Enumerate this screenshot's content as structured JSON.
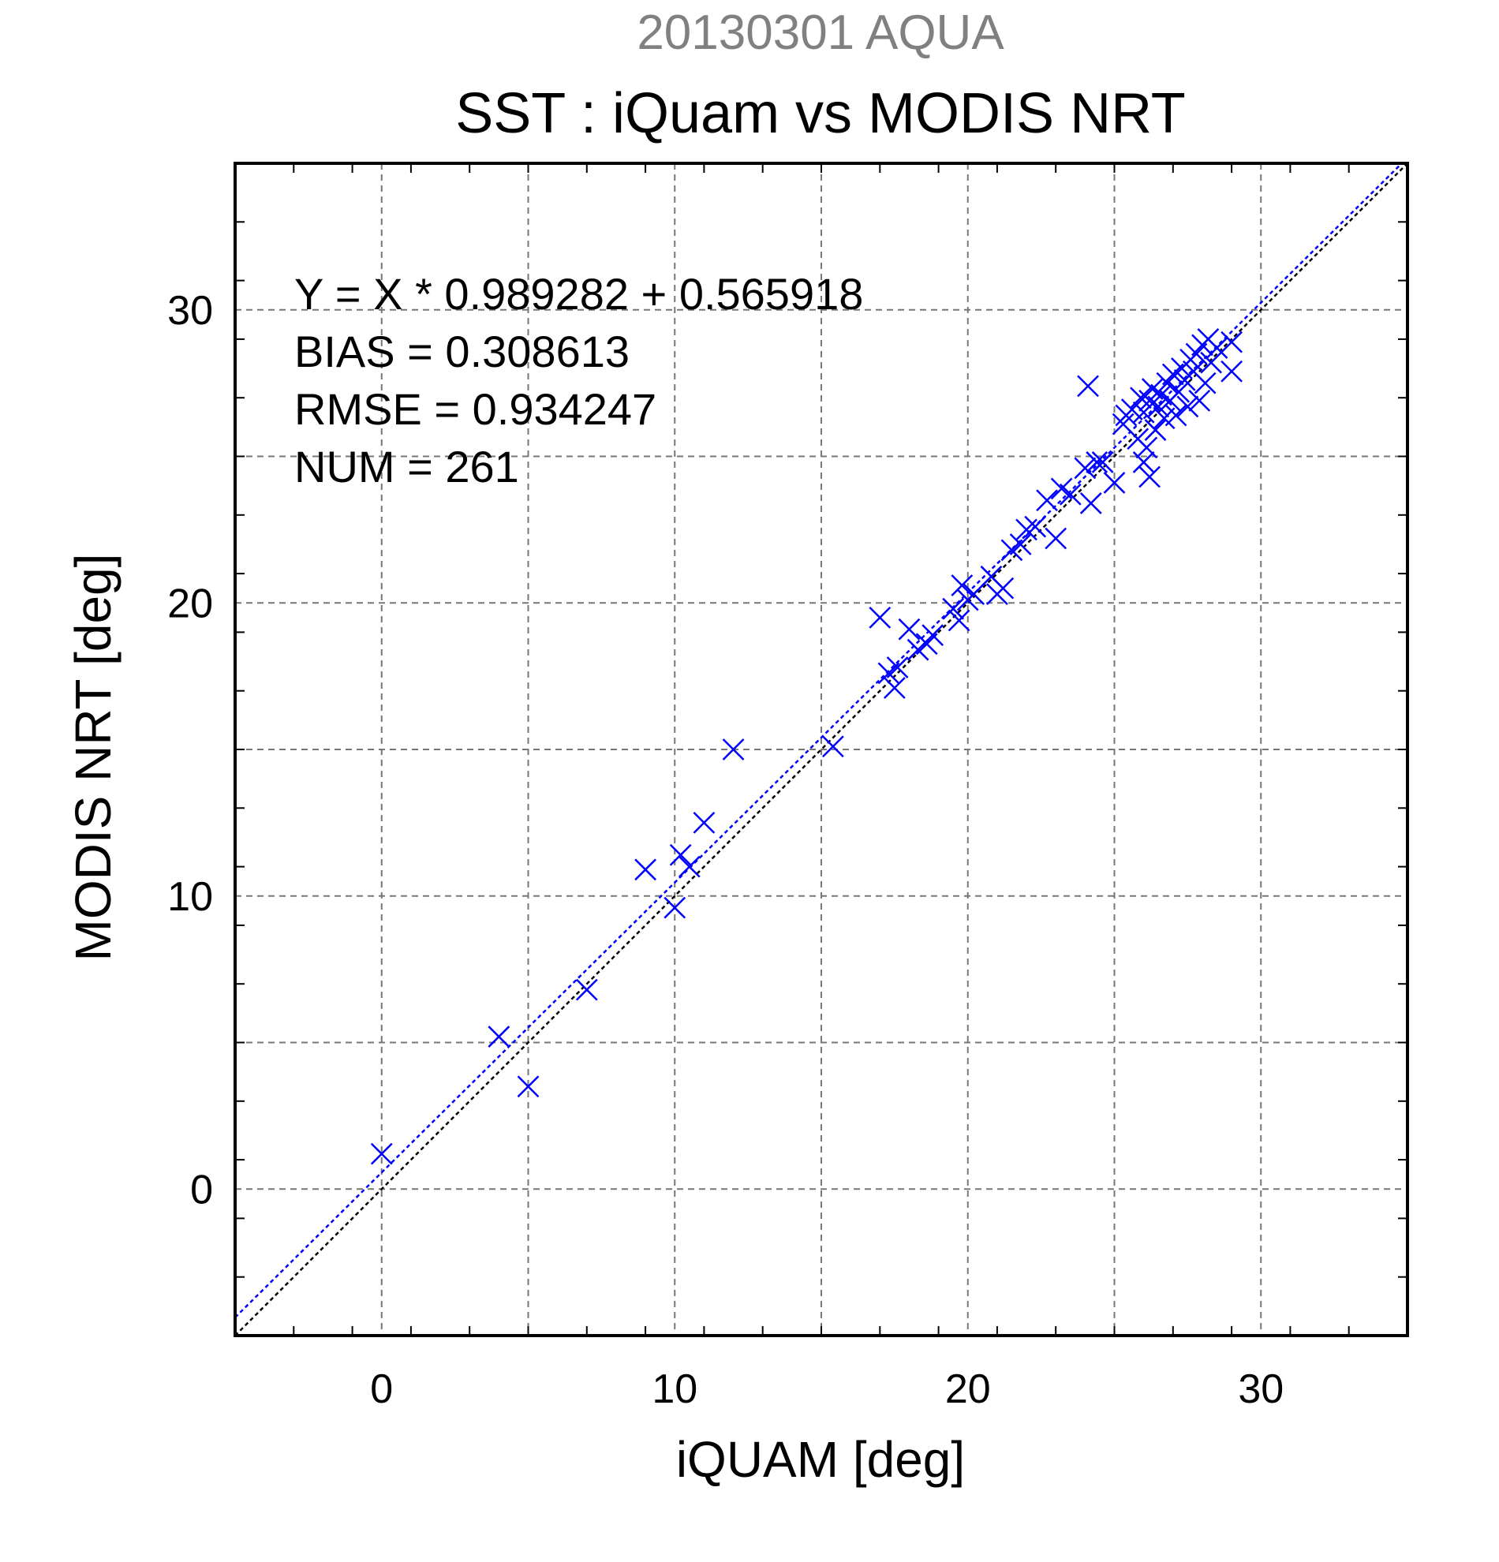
{
  "chart_data": {
    "type": "scatter",
    "supertitle": "20130301 AQUA",
    "title": "SST : iQuam vs MODIS NRT",
    "xlabel": "iQUAM [deg]",
    "ylabel": "MODIS NRT [deg]",
    "xlim": [
      -5,
      35
    ],
    "ylim": [
      -5,
      35
    ],
    "xticks": [
      0,
      10,
      20,
      30
    ],
    "yticks": [
      0,
      10,
      20,
      30
    ],
    "xtick_labels": [
      "0",
      "10",
      "20",
      "30"
    ],
    "ytick_labels": [
      "0",
      "10",
      "20",
      "30"
    ],
    "grid": true,
    "stats": [
      "Y = X * 0.989282 + 0.565918",
      "BIAS = 0.308613",
      "RMSE = 0.934247",
      "NUM = 261"
    ],
    "fit_line": {
      "slope": 0.989282,
      "intercept": 0.565918,
      "color": "#0000ff"
    },
    "identity_line": {
      "slope": 1,
      "intercept": 0,
      "color": "#000000"
    },
    "title_colors": {
      "supertitle": "#808080",
      "title": "#000000"
    },
    "series": [
      {
        "marker": "x",
        "color": "#0000ff",
        "points": [
          [
            0,
            1.2
          ],
          [
            4,
            5.2
          ],
          [
            5,
            3.5
          ],
          [
            7,
            6.8
          ],
          [
            9,
            10.9
          ],
          [
            10,
            9.6
          ],
          [
            10.2,
            11.4
          ],
          [
            10.5,
            11
          ],
          [
            11,
            12.5
          ],
          [
            12,
            15
          ],
          [
            15.4,
            15.1
          ],
          [
            17,
            19.5
          ],
          [
            17.3,
            17.6
          ],
          [
            17.5,
            17.1
          ],
          [
            17.6,
            17.8
          ],
          [
            18,
            19.1
          ],
          [
            18.3,
            18.4
          ],
          [
            18.6,
            18.6
          ],
          [
            18.8,
            18.9
          ],
          [
            19.5,
            19.8
          ],
          [
            19.7,
            19.4
          ],
          [
            19.8,
            20.6
          ],
          [
            20,
            20.1
          ],
          [
            20.2,
            20.3
          ],
          [
            20.8,
            20.9
          ],
          [
            21,
            20.3
          ],
          [
            21.2,
            20.5
          ],
          [
            21.5,
            21.8
          ],
          [
            21.8,
            22
          ],
          [
            22,
            22.5
          ],
          [
            22.3,
            22.6
          ],
          [
            22.7,
            23.5
          ],
          [
            23,
            22.2
          ],
          [
            23.2,
            23.9
          ],
          [
            23.5,
            23.7
          ],
          [
            24,
            24.6
          ],
          [
            24.1,
            27.4
          ],
          [
            24.2,
            23.4
          ],
          [
            24.4,
            24.8
          ],
          [
            24.6,
            24.8
          ],
          [
            25,
            24.1
          ],
          [
            25.3,
            26.1
          ],
          [
            25.4,
            26.4
          ],
          [
            25.6,
            26.6
          ],
          [
            25.8,
            25.6
          ],
          [
            25.9,
            27
          ],
          [
            26,
            24.8
          ],
          [
            26,
            26.5
          ],
          [
            26.1,
            25.3
          ],
          [
            26.2,
            24.3
          ],
          [
            26.2,
            26.9
          ],
          [
            26.3,
            27.3
          ],
          [
            26.4,
            25.9
          ],
          [
            26.5,
            26.7
          ],
          [
            26.6,
            27.1
          ],
          [
            26.7,
            26.3
          ],
          [
            26.8,
            27.5
          ],
          [
            26.9,
            26.9
          ],
          [
            27,
            27.8
          ],
          [
            27.1,
            26.4
          ],
          [
            27.2,
            27.2
          ],
          [
            27.3,
            28
          ],
          [
            27.4,
            27.6
          ],
          [
            27.5,
            26.7
          ],
          [
            27.6,
            28.3
          ],
          [
            27.7,
            27.9
          ],
          [
            27.8,
            28.5
          ],
          [
            27.9,
            26.9
          ],
          [
            28,
            28.8
          ],
          [
            28.1,
            27.5
          ],
          [
            28.2,
            29
          ],
          [
            28.3,
            28.2
          ],
          [
            28.5,
            28.7
          ],
          [
            29,
            28.9
          ],
          [
            29,
            27.9
          ]
        ]
      }
    ]
  }
}
